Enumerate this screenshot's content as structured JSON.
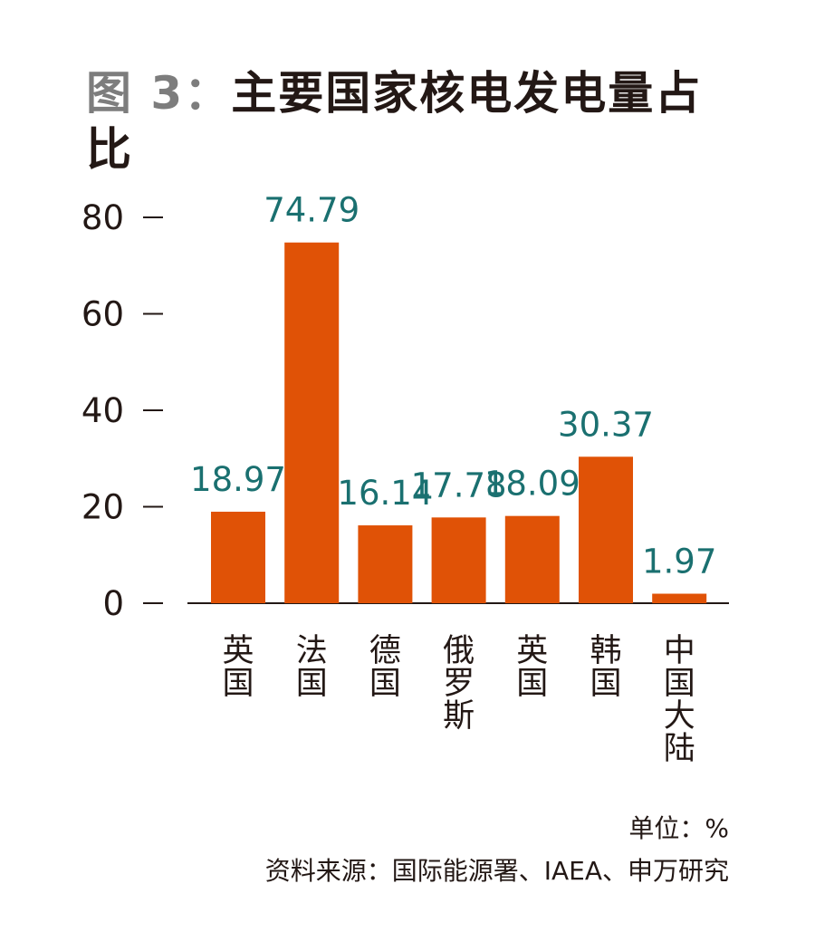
{
  "title_prefix": "图 3：",
  "title_main": "主要国家核电发电量占比",
  "unit_text": "单位：%",
  "source_text": "资料来源：国际能源署、IAEA、申万研究",
  "colors": {
    "bar": "#e05206",
    "data_label": "#1a7070",
    "text": "#231815",
    "title_prefix": "#7d7d7d"
  },
  "chart_data": {
    "type": "bar",
    "categories": [
      "英国",
      "法国",
      "德国",
      "俄罗斯",
      "英国",
      "韩国",
      "中国大陆"
    ],
    "values": [
      18.97,
      74.79,
      16.14,
      17.78,
      18.09,
      30.37,
      1.97
    ],
    "data_labels": [
      "18.97",
      "74.79",
      "16.14",
      "17.78",
      "18.09",
      "30.37",
      "1.97"
    ],
    "yticks": [
      "0",
      "20",
      "40",
      "60",
      "80"
    ],
    "ylim": [
      0,
      80
    ],
    "grid": false,
    "legend": "none"
  }
}
